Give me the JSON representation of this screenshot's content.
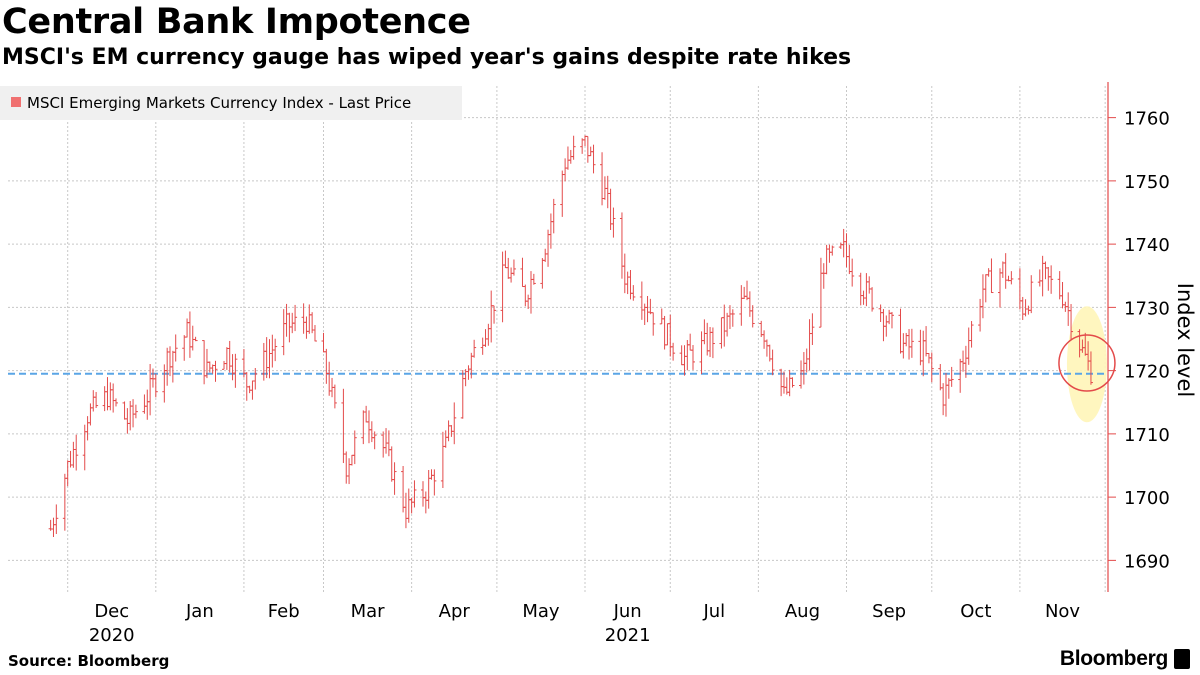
{
  "title": "Central Bank Impotence",
  "subtitle": "MSCI's EM currency gauge has wiped year's gains despite rate hikes",
  "source": "Source: Bloomberg",
  "brand": "Bloomberg",
  "colors": {
    "series": "#e34a4a",
    "reference_line": "#5aa5e6",
    "axis": "#e34a4a",
    "highlight": "#fff5b8"
  },
  "chart_data": {
    "type": "line",
    "series": [
      {
        "name": "MSCI Emerging Markets Currency Index - Last Price",
        "x": [
          "2020-11-25",
          "2020-12-01",
          "2020-12-08",
          "2020-12-15",
          "2020-12-22",
          "2020-12-29",
          "2021-01-05",
          "2021-01-12",
          "2021-01-19",
          "2021-01-26",
          "2021-02-02",
          "2021-02-09",
          "2021-02-16",
          "2021-02-23",
          "2021-03-02",
          "2021-03-09",
          "2021-03-16",
          "2021-03-23",
          "2021-03-30",
          "2021-04-06",
          "2021-04-13",
          "2021-04-20",
          "2021-04-27",
          "2021-05-04",
          "2021-05-11",
          "2021-05-18",
          "2021-05-25",
          "2021-06-01",
          "2021-06-08",
          "2021-06-15",
          "2021-06-22",
          "2021-06-29",
          "2021-07-06",
          "2021-07-13",
          "2021-07-20",
          "2021-07-27",
          "2021-08-03",
          "2021-08-10",
          "2021-08-17",
          "2021-08-24",
          "2021-08-31",
          "2021-09-07",
          "2021-09-14",
          "2021-09-21",
          "2021-09-28",
          "2021-10-05",
          "2021-10-12",
          "2021-10-19",
          "2021-10-26",
          "2021-11-02",
          "2021-11-09",
          "2021-11-16",
          "2021-11-23",
          "2021-11-26"
        ],
        "values": [
          1695,
          1705,
          1713,
          1716,
          1712,
          1716,
          1722,
          1726,
          1720,
          1723,
          1718,
          1722,
          1727,
          1728,
          1720,
          1705,
          1713,
          1707,
          1698,
          1701,
          1708,
          1720,
          1727,
          1736,
          1732,
          1740,
          1753,
          1756,
          1748,
          1735,
          1731,
          1726,
          1722,
          1724,
          1727,
          1731,
          1726,
          1716,
          1720,
          1737,
          1739,
          1733,
          1729,
          1724,
          1723,
          1716,
          1722,
          1733,
          1736,
          1730,
          1735,
          1732,
          1723,
          1720
        ]
      }
    ],
    "reference_line": {
      "value": 1719.5,
      "style": "dashed"
    },
    "x_ticks": [
      "Dec",
      "Jan",
      "Feb",
      "Mar",
      "Apr",
      "May",
      "Jun",
      "Jul",
      "Aug",
      "Sep",
      "Oct",
      "Nov"
    ],
    "x_year_labels": [
      {
        "label": "2020",
        "at": "Dec"
      },
      {
        "label": "2021",
        "at": "Jun"
      }
    ],
    "y_ticks": [
      1690,
      1700,
      1710,
      1720,
      1730,
      1740,
      1750,
      1760
    ],
    "ylim": [
      1685,
      1765
    ],
    "ylabel": "Index level",
    "y_axis_side": "right",
    "grid": true,
    "legend": "top-left"
  }
}
